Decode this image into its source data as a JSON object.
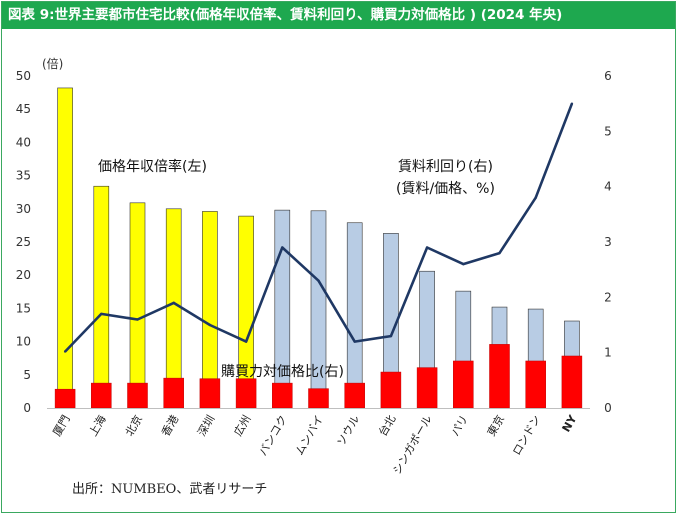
{
  "figure_title": "図表 9:世界主要都市住宅比較(価格年収倍率、賃料利回り、購買力対価格比 ) (2024 年央)",
  "source_note": "出所：NUMBEO、武者リサーチ",
  "chart_data": {
    "type": "bar",
    "categories": [
      "厦門",
      "上海",
      "北京",
      "香港",
      "深圳",
      "広州",
      "バンコク",
      "ムンバイ",
      "ソウル",
      "台北",
      "シンガポール",
      "パリ",
      "東京",
      "ロンドン",
      "NY"
    ],
    "left_axis": {
      "unit_label": "(倍)",
      "ylim": [
        0,
        50
      ],
      "ticks": [
        0,
        5,
        10,
        15,
        20,
        25,
        30,
        35,
        40,
        45,
        50
      ]
    },
    "right_axis": {
      "ylim": [
        0,
        6
      ],
      "ticks": [
        0,
        1,
        2,
        3,
        4,
        5,
        6
      ]
    },
    "series": [
      {
        "name": "価格年収倍率(左)",
        "type": "bar",
        "axis": "left",
        "values": [
          48.2,
          33.4,
          30.9,
          30.0,
          29.6,
          28.9,
          29.8,
          29.7,
          27.9,
          26.3,
          20.6,
          17.6,
          15.2,
          14.9,
          13.1
        ],
        "colors": [
          "#ffff00",
          "#ffff00",
          "#ffff00",
          "#ffff00",
          "#ffff00",
          "#ffff00",
          "#b8cce4",
          "#b8cce4",
          "#b8cce4",
          "#b8cce4",
          "#b8cce4",
          "#b8cce4",
          "#b8cce4",
          "#b8cce4",
          "#b8cce4"
        ]
      },
      {
        "name": "購買力対価格比(右)",
        "type": "bar",
        "axis": "right",
        "values": [
          0.34,
          0.45,
          0.45,
          0.54,
          0.53,
          0.53,
          0.45,
          0.35,
          0.45,
          0.65,
          0.73,
          0.85,
          1.15,
          0.85,
          0.94
        ],
        "color": "#ff0000"
      },
      {
        "name": "賃料利回り(右)\n(賃料/価格、%)",
        "type": "line",
        "axis": "right",
        "values": [
          1.02,
          1.7,
          1.6,
          1.9,
          1.5,
          1.2,
          2.9,
          2.3,
          1.2,
          1.3,
          2.9,
          2.6,
          2.8,
          3.8,
          5.5
        ],
        "color": "#1f3864"
      }
    ],
    "annotations": [
      {
        "text": "価格年収倍率(左)"
      },
      {
        "text": "賃料利回り(右)"
      },
      {
        "text": "(賃料/価格、%)"
      },
      {
        "text": "購買力対価格比(右)"
      }
    ],
    "grid": false,
    "legend": "none"
  }
}
